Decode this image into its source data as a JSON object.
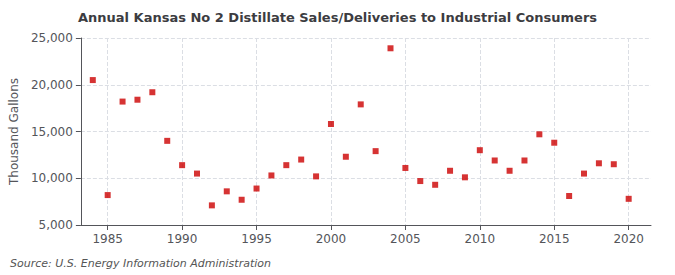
{
  "chart_data": {
    "type": "scatter",
    "title": "Annual Kansas No 2 Distillate Sales/Deliveries to Industrial Consumers",
    "ylabel": "Thousand Gallons",
    "annotation": "Source: U.S. Energy Information Administration",
    "x": [
      1984,
      1985,
      1986,
      1987,
      1988,
      1989,
      1990,
      1991,
      1992,
      1993,
      1994,
      1995,
      1996,
      1997,
      1998,
      1999,
      2000,
      2001,
      2002,
      2003,
      2004,
      2005,
      2006,
      2007,
      2008,
      2009,
      2010,
      2011,
      2012,
      2013,
      2014,
      2015,
      2016,
      2017,
      2018,
      2019,
      2020
    ],
    "values": [
      20500,
      8200,
      18200,
      18400,
      19200,
      14000,
      11400,
      10500,
      7100,
      8600,
      7700,
      8900,
      10300,
      11400,
      12000,
      10200,
      15800,
      12300,
      17900,
      12900,
      23900,
      11100,
      9700,
      9300,
      10800,
      10100,
      13000,
      11900,
      10800,
      11900,
      14700,
      13800,
      8100,
      10500,
      11600,
      11500,
      7800
    ],
    "color": "#cc0000",
    "marker": "square",
    "xlim": [
      1983.2,
      2021.5
    ],
    "xticks": [
      1985,
      1990,
      1995,
      2000,
      2005,
      2010,
      2015,
      2020
    ],
    "ylim": [
      5000,
      25000
    ],
    "yticks": [
      {
        "value": 5000,
        "label": "5,000"
      },
      {
        "value": 10000,
        "label": "10,000"
      },
      {
        "value": 15000,
        "label": "15,000"
      },
      {
        "value": 20000,
        "label": "20,000"
      },
      {
        "value": 25000,
        "label": "25,000"
      }
    ],
    "grid": true
  }
}
